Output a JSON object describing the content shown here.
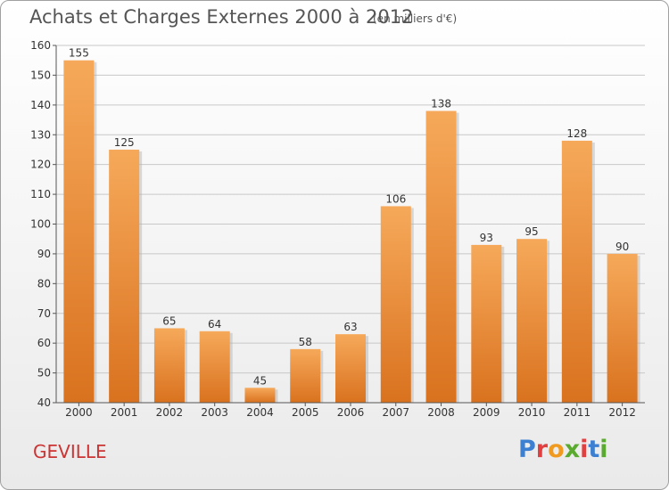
{
  "header": {
    "title": "Achats et Charges Externes 2000 à 2012",
    "unit_note": "(en milliers d'€)"
  },
  "footer": {
    "commune": "GEVILLE",
    "logo_text": "Proxiti",
    "logo_colors": [
      "#3d7fd1",
      "#e04040",
      "#f09a20",
      "#5aaa30",
      "#e04040",
      "#3d7fd1",
      "#5aaa30"
    ]
  },
  "colors": {
    "bar_light": "#f6a95a",
    "bar_dark": "#d9721f",
    "grid": "#c8c8c8",
    "axis": "#555555"
  },
  "chart_data": {
    "type": "bar",
    "title": "Achats et Charges Externes 2000 à 2012",
    "subtitle": "(en milliers d'€)",
    "categories": [
      "2000",
      "2001",
      "2002",
      "2003",
      "2004",
      "2005",
      "2006",
      "2007",
      "2008",
      "2009",
      "2010",
      "2011",
      "2012"
    ],
    "values": [
      155,
      125,
      65,
      64,
      45,
      58,
      63,
      106,
      138,
      93,
      95,
      128,
      90
    ],
    "ylim": [
      40,
      160
    ],
    "yticks": [
      40,
      50,
      60,
      70,
      80,
      90,
      100,
      110,
      120,
      130,
      140,
      150,
      160
    ],
    "grid": true,
    "xlabel": "",
    "ylabel": ""
  }
}
